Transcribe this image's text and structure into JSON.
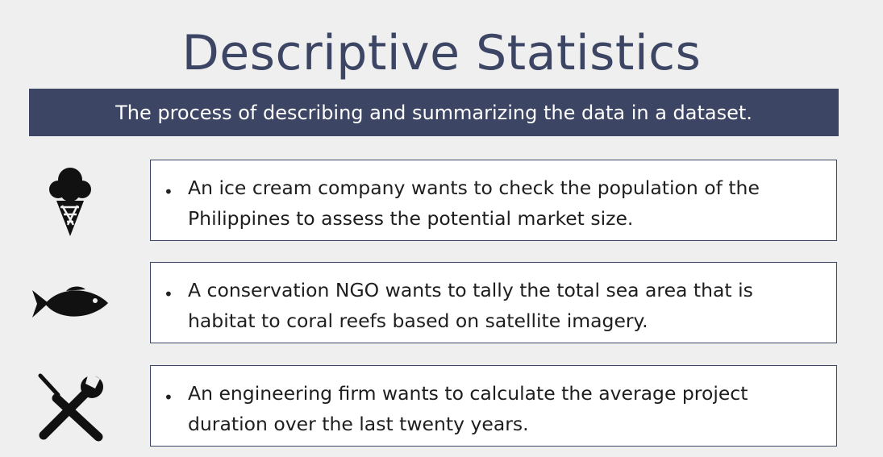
{
  "slide": {
    "title": "Descriptive Statistics",
    "banner": "The process of describing and summarizing the data in a dataset."
  },
  "examples": [
    {
      "icon": "ice-cream-icon",
      "bullet": "•",
      "text": "An ice cream company wants to check the population of the Philippines to assess the potential market size."
    },
    {
      "icon": "fish-icon",
      "bullet": "•",
      "text": "A conservation NGO wants to tally the total sea area that is habitat to coral reefs based on satellite imagery."
    },
    {
      "icon": "tools-icon",
      "bullet": "•",
      "text": "An engineering firm wants to calculate the average project duration over the last twenty years."
    }
  ],
  "colors": {
    "accent": "#3c4564",
    "background": "#efefef",
    "card": "#ffffff"
  }
}
